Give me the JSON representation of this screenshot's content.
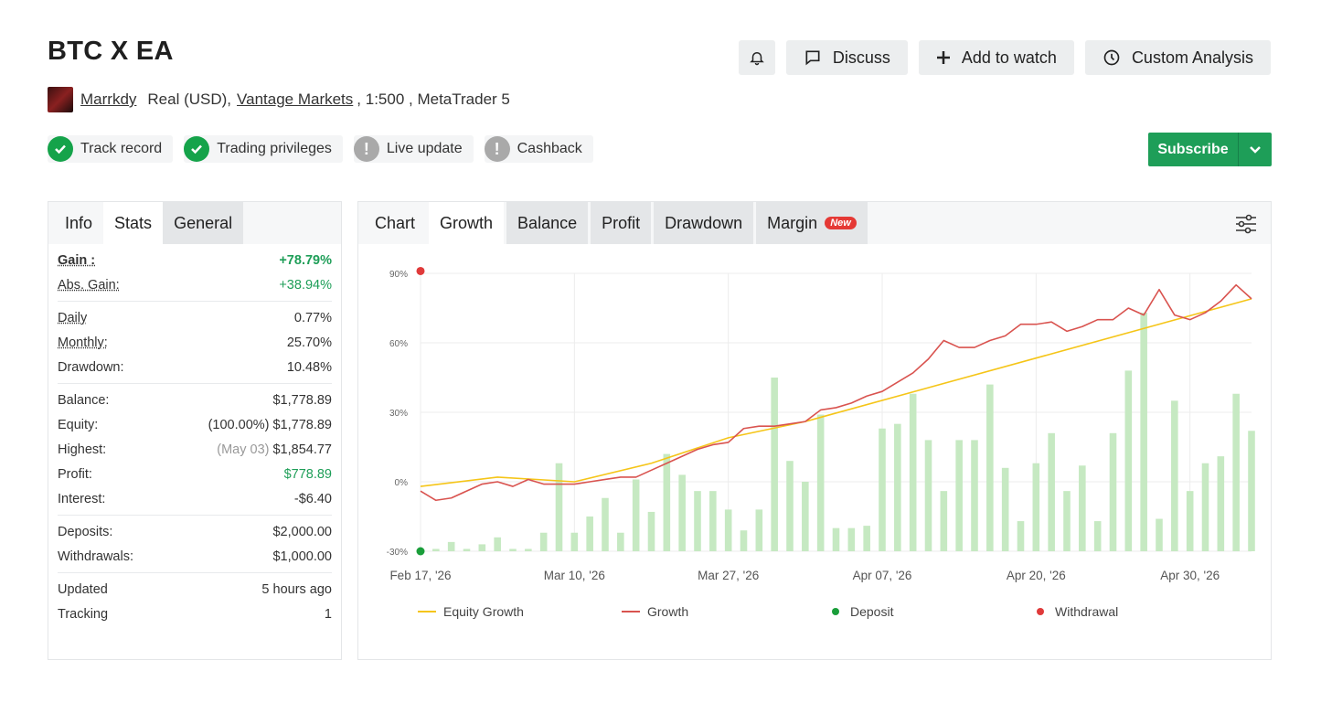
{
  "header": {
    "title": "BTC X EA",
    "buttons": {
      "discuss": "Discuss",
      "add_watch": "Add to watch",
      "custom_analysis": "Custom Analysis"
    }
  },
  "account": {
    "user": "Marrkdy",
    "type": "Real (USD),",
    "broker": "Vantage Markets",
    "leverage": ", 1:500 , MetaTrader 5"
  },
  "badges": {
    "track_record": "Track record",
    "trading_privileges": "Trading privileges",
    "live_update": "Live update",
    "cashback": "Cashback"
  },
  "subscribe": {
    "label": "Subscribe"
  },
  "left_tabs": {
    "info": "Info",
    "stats": "Stats",
    "general": "General"
  },
  "stats": {
    "gain": {
      "label": "Gain :",
      "value": "+78.79%"
    },
    "abs_gain": {
      "label": "Abs. Gain:",
      "value": "+38.94%"
    },
    "daily": {
      "label": "Daily",
      "value": "0.77%"
    },
    "monthly": {
      "label": "Monthly:",
      "value": "25.70%"
    },
    "drawdown": {
      "label": "Drawdown:",
      "value": "10.48%"
    },
    "balance": {
      "label": "Balance:",
      "value": "$1,778.89"
    },
    "equity": {
      "label": "Equity:",
      "note": "(100.00%)",
      "value": "$1,778.89"
    },
    "highest": {
      "label": "Highest:",
      "note": "(May 03)",
      "value": "$1,854.77"
    },
    "profit": {
      "label": "Profit:",
      "value": "$778.89"
    },
    "interest": {
      "label": "Interest:",
      "value": "-$6.40"
    },
    "deposits": {
      "label": "Deposits:",
      "value": "$2,000.00"
    },
    "withdrawals": {
      "label": "Withdrawals:",
      "value": "$1,000.00"
    },
    "updated": {
      "label": "Updated",
      "value": "5 hours ago"
    },
    "tracking": {
      "label": "Tracking",
      "value": "1"
    }
  },
  "chart_tabs": {
    "chart": "Chart",
    "growth": "Growth",
    "balance": "Balance",
    "profit": "Profit",
    "drawdown": "Drawdown",
    "margin": "Margin",
    "new_badge": "New"
  },
  "colors": {
    "equity_growth": "#f5c518",
    "growth": "#d9534f",
    "bars": "#c6e9c2",
    "deposit": "#1a9e3a",
    "withdrawal": "#e03a3a"
  },
  "chart_data": {
    "type": "line",
    "y_ticks": [
      "90%",
      "60%",
      "30%",
      "0%",
      "-30%"
    ],
    "ylim": [
      -30,
      90
    ],
    "x_ticks": [
      "Feb 17, '26",
      "Mar 10, '26",
      "Mar 27, '26",
      "Apr 07, '26",
      "Apr 20, '26",
      "Apr 30, '26"
    ],
    "xlim": [
      0,
      54
    ],
    "x_tick_positions": [
      0,
      10,
      20,
      30,
      40,
      50
    ],
    "legend": [
      "Equity Growth",
      "Growth",
      "Deposit",
      "Withdrawal"
    ],
    "growth": [
      [
        0,
        -4
      ],
      [
        1,
        -8
      ],
      [
        2,
        -7
      ],
      [
        3,
        -4
      ],
      [
        4,
        -1
      ],
      [
        5,
        0
      ],
      [
        6,
        -2
      ],
      [
        7,
        1
      ],
      [
        8,
        -1
      ],
      [
        9,
        -1
      ],
      [
        10,
        -1
      ],
      [
        11,
        0
      ],
      [
        12,
        1
      ],
      [
        13,
        2
      ],
      [
        14,
        2
      ],
      [
        15,
        5
      ],
      [
        16,
        8
      ],
      [
        17,
        11
      ],
      [
        18,
        14
      ],
      [
        19,
        16
      ],
      [
        20,
        17
      ],
      [
        21,
        23
      ],
      [
        22,
        24
      ],
      [
        23,
        24
      ],
      [
        24,
        25
      ],
      [
        25,
        26
      ],
      [
        26,
        31
      ],
      [
        27,
        32
      ],
      [
        28,
        34
      ],
      [
        29,
        37
      ],
      [
        30,
        39
      ],
      [
        31,
        43
      ],
      [
        32,
        47
      ],
      [
        33,
        53
      ],
      [
        34,
        61
      ],
      [
        35,
        58
      ],
      [
        36,
        58
      ],
      [
        37,
        61
      ],
      [
        38,
        63
      ],
      [
        39,
        68
      ],
      [
        40,
        68
      ],
      [
        41,
        69
      ],
      [
        42,
        65
      ],
      [
        43,
        67
      ],
      [
        44,
        70
      ],
      [
        45,
        70
      ],
      [
        46,
        75
      ],
      [
        47,
        72
      ],
      [
        48,
        83
      ],
      [
        49,
        72
      ],
      [
        50,
        70
      ],
      [
        51,
        73
      ],
      [
        52,
        78
      ],
      [
        53,
        85
      ],
      [
        54,
        79
      ]
    ],
    "equity_growth": [
      [
        0,
        -2
      ],
      [
        5,
        2
      ],
      [
        10,
        0
      ],
      [
        15,
        8
      ],
      [
        20,
        19
      ],
      [
        25,
        26
      ],
      [
        54,
        79
      ]
    ],
    "bars": [
      [
        1,
        -29
      ],
      [
        2,
        -26
      ],
      [
        3,
        -29
      ],
      [
        4,
        -27
      ],
      [
        5,
        -24
      ],
      [
        6,
        -29
      ],
      [
        7,
        -29
      ],
      [
        8,
        -22
      ],
      [
        9,
        8
      ],
      [
        10,
        -22
      ],
      [
        11,
        -15
      ],
      [
        12,
        -7
      ],
      [
        13,
        -22
      ],
      [
        14,
        1
      ],
      [
        15,
        -13
      ],
      [
        16,
        12
      ],
      [
        17,
        3
      ],
      [
        18,
        -4
      ],
      [
        19,
        -4
      ],
      [
        20,
        -12
      ],
      [
        21,
        -21
      ],
      [
        22,
        -12
      ],
      [
        23,
        45
      ],
      [
        24,
        9
      ],
      [
        25,
        0
      ],
      [
        26,
        29
      ],
      [
        27,
        -20
      ],
      [
        28,
        -20
      ],
      [
        29,
        -19
      ],
      [
        30,
        23
      ],
      [
        31,
        25
      ],
      [
        32,
        38
      ],
      [
        33,
        18
      ],
      [
        34,
        -4
      ],
      [
        35,
        18
      ],
      [
        36,
        18
      ],
      [
        37,
        42
      ],
      [
        38,
        6
      ],
      [
        39,
        -17
      ],
      [
        40,
        8
      ],
      [
        41,
        21
      ],
      [
        42,
        -4
      ],
      [
        43,
        7
      ],
      [
        44,
        -17
      ],
      [
        45,
        21
      ],
      [
        46,
        48
      ],
      [
        47,
        73
      ],
      [
        48,
        -16
      ],
      [
        49,
        35
      ],
      [
        50,
        -4
      ],
      [
        51,
        8
      ],
      [
        52,
        11
      ],
      [
        53,
        38
      ],
      [
        54,
        22
      ]
    ],
    "deposit": [
      [
        0,
        -30
      ]
    ],
    "withdrawal": [
      [
        0,
        91
      ]
    ]
  }
}
